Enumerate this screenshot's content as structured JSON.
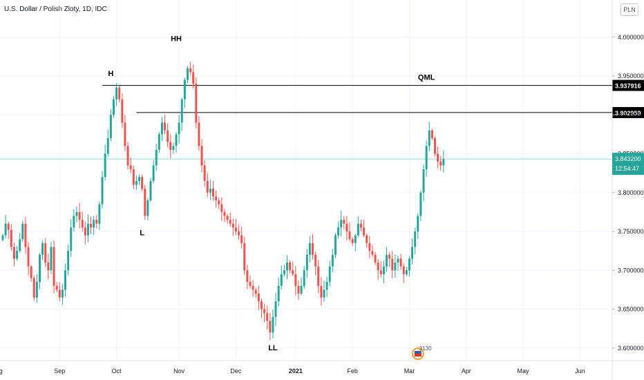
{
  "header": {
    "symbol_title": "U.S. Dollar / Polish Zloty, 1D, IDC",
    "currency_button": "PLN"
  },
  "colors": {
    "up": "#26a69a",
    "down": "#ef5350",
    "grid": "#f0f3fa",
    "axis_line": "#e0e3eb",
    "hline": "#000000",
    "last_price": "#26a69a",
    "last_price_line": "#8fd6cf"
  },
  "chart_data": {
    "type": "candlestick",
    "title": "U.S. Dollar / Polish Zloty, 1D, IDC",
    "y_range": [
      3.59,
      4.03
    ],
    "y_ticks": [
      "4.000000",
      "3.950000",
      "3.900000",
      "3.850000",
      "3.800000",
      "3.750000",
      "3.700000",
      "3.650000",
      "3.600000"
    ],
    "y_tick_values": [
      4.0,
      3.95,
      3.9,
      3.85,
      3.8,
      3.75,
      3.7,
      3.65,
      3.6
    ],
    "x_ticks": [
      "Aug",
      "Sep",
      "Oct",
      "Nov",
      "Dec",
      "2021",
      "Feb",
      "Mar",
      "Apr",
      "May",
      "Jun"
    ],
    "x_tick_index": [
      -2,
      20,
      40,
      62,
      82,
      103,
      123,
      143,
      163,
      183,
      203
    ],
    "grid": true,
    "closes": [
      3.745,
      3.76,
      3.752,
      3.73,
      3.715,
      3.725,
      3.74,
      3.76,
      3.73,
      3.705,
      3.69,
      3.665,
      3.685,
      3.72,
      3.735,
      3.71,
      3.7,
      3.73,
      3.68,
      3.675,
      3.665,
      3.675,
      3.7,
      3.725,
      3.755,
      3.77,
      3.775,
      3.765,
      3.755,
      3.745,
      3.76,
      3.755,
      3.765,
      3.76,
      3.785,
      3.82,
      3.85,
      3.87,
      3.9,
      3.92,
      3.935,
      3.92,
      3.89,
      3.86,
      3.835,
      3.83,
      3.81,
      3.815,
      3.82,
      3.805,
      3.77,
      3.79,
      3.815,
      3.835,
      3.855,
      3.875,
      3.89,
      3.88,
      3.865,
      3.855,
      3.86,
      3.875,
      3.89,
      3.92,
      3.945,
      3.96,
      3.955,
      3.94,
      3.89,
      3.86,
      3.835,
      3.815,
      3.8,
      3.805,
      3.795,
      3.79,
      3.785,
      3.775,
      3.77,
      3.765,
      3.76,
      3.755,
      3.75,
      3.745,
      3.735,
      3.7,
      3.685,
      3.68,
      3.675,
      3.67,
      3.66,
      3.65,
      3.645,
      3.635,
      3.62,
      3.64,
      3.66,
      3.68,
      3.695,
      3.7,
      3.71,
      3.7,
      3.695,
      3.68,
      3.67,
      3.68,
      3.7,
      3.72,
      3.735,
      3.72,
      3.705,
      3.68,
      3.665,
      3.675,
      3.685,
      3.705,
      3.72,
      3.745,
      3.755,
      3.765,
      3.76,
      3.75,
      3.74,
      3.735,
      3.745,
      3.76,
      3.755,
      3.745,
      3.735,
      3.725,
      3.72,
      3.71,
      3.7,
      3.695,
      3.705,
      3.72,
      3.715,
      3.7,
      3.71,
      3.715,
      3.705,
      3.695,
      3.7,
      3.715,
      3.73,
      3.75,
      3.77,
      3.8,
      3.83,
      3.86,
      3.88,
      3.87,
      3.85,
      3.84,
      3.835,
      3.843
    ],
    "annotations": [
      {
        "label": "H",
        "index": 38,
        "price": 3.95
      },
      {
        "label": "HH",
        "index": 61,
        "price": 3.995
      },
      {
        "label": "L",
        "index": 49,
        "price": 3.745
      },
      {
        "label": "LL",
        "index": 95,
        "price": 3.597
      },
      {
        "label": "QML",
        "index": 149,
        "price": 3.945
      }
    ],
    "horizontal_lines": [
      {
        "price": 3.937916,
        "label": "3.937916",
        "from_index": 35
      },
      {
        "price": 3.902959,
        "label": "3.902959",
        "from_index": 47
      }
    ],
    "last_price": {
      "value": 3.8432,
      "label": "3.843200",
      "countdown": "12:54:47"
    },
    "event_badge": {
      "label": "3130",
      "index": 146
    }
  }
}
